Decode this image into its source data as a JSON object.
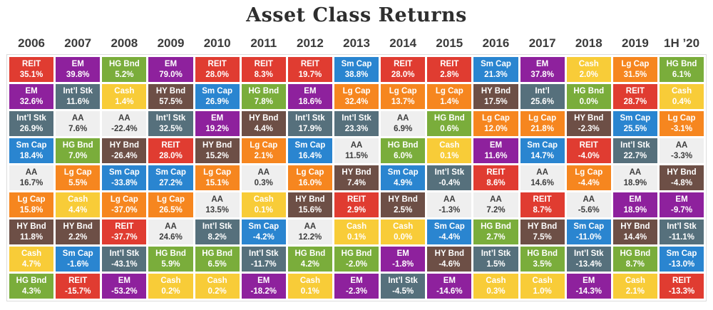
{
  "title": "Asset Class Returns",
  "chart_data": {
    "type": "table",
    "description": "Periodic table of asset class returns, ranked best to worst within each year",
    "asset_colors": {
      "reit": {
        "bg": "#e03c31",
        "fg": "#ffffff"
      },
      "em": {
        "bg": "#8e219d",
        "fg": "#ffffff"
      },
      "hg_bnd": {
        "bg": "#7aad3b",
        "fg": "#ffffff"
      },
      "cash": {
        "bg": "#f8cc38",
        "fg": "#ffffff"
      },
      "hy_bnd": {
        "bg": "#6d4f46",
        "fg": "#ffffff"
      },
      "intl_stk": {
        "bg": "#56707c",
        "fg": "#ffffff"
      },
      "aa": {
        "bg": "#efefef",
        "fg": "#3d3d3d"
      },
      "sm_cap": {
        "bg": "#2a85d0",
        "fg": "#ffffff"
      },
      "lg_cap": {
        "bg": "#f6861f",
        "fg": "#ffffff"
      }
    },
    "columns": [
      {
        "year": "2006",
        "cells": [
          {
            "asset": "reit",
            "label": "REIT",
            "value": "35.1%"
          },
          {
            "asset": "em",
            "label": "EM",
            "value": "32.6%"
          },
          {
            "asset": "intl_stk",
            "label": "Int’l Stk",
            "value": "26.9%"
          },
          {
            "asset": "sm_cap",
            "label": "Sm Cap",
            "value": "18.4%"
          },
          {
            "asset": "aa",
            "label": "AA",
            "value": "16.7%"
          },
          {
            "asset": "lg_cap",
            "label": "Lg Cap",
            "value": "15.8%"
          },
          {
            "asset": "hy_bnd",
            "label": "HY Bnd",
            "value": "11.8%"
          },
          {
            "asset": "cash",
            "label": "Cash",
            "value": "4.7%"
          },
          {
            "asset": "hg_bnd",
            "label": "HG Bnd",
            "value": "4.3%"
          }
        ]
      },
      {
        "year": "2007",
        "cells": [
          {
            "asset": "em",
            "label": "EM",
            "value": "39.8%"
          },
          {
            "asset": "intl_stk",
            "label": "Int’l Stk",
            "value": "11.6%"
          },
          {
            "asset": "aa",
            "label": "AA",
            "value": "7.6%"
          },
          {
            "asset": "hg_bnd",
            "label": "HG Bnd",
            "value": "7.0%"
          },
          {
            "asset": "lg_cap",
            "label": "Lg Cap",
            "value": "5.5%"
          },
          {
            "asset": "cash",
            "label": "Cash",
            "value": "4.4%"
          },
          {
            "asset": "hy_bnd",
            "label": "HY Bnd",
            "value": "2.2%"
          },
          {
            "asset": "sm_cap",
            "label": "Sm Cap",
            "value": "-1.6%"
          },
          {
            "asset": "reit",
            "label": "REIT",
            "value": "-15.7%"
          }
        ]
      },
      {
        "year": "2008",
        "cells": [
          {
            "asset": "hg_bnd",
            "label": "HG Bnd",
            "value": "5.2%"
          },
          {
            "asset": "cash",
            "label": "Cash",
            "value": "1.4%"
          },
          {
            "asset": "aa",
            "label": "AA",
            "value": "-22.4%"
          },
          {
            "asset": "hy_bnd",
            "label": "HY Bnd",
            "value": "-26.4%"
          },
          {
            "asset": "sm_cap",
            "label": "Sm Cap",
            "value": "-33.8%"
          },
          {
            "asset": "lg_cap",
            "label": "Lg Cap",
            "value": "-37.0%"
          },
          {
            "asset": "reit",
            "label": "REIT",
            "value": "-37.7%"
          },
          {
            "asset": "intl_stk",
            "label": "Int’l Stk",
            "value": "-43.1%"
          },
          {
            "asset": "em",
            "label": "EM",
            "value": "-53.2%"
          }
        ]
      },
      {
        "year": "2009",
        "cells": [
          {
            "asset": "em",
            "label": "EM",
            "value": "79.0%"
          },
          {
            "asset": "hy_bnd",
            "label": "HY Bnd",
            "value": "57.5%"
          },
          {
            "asset": "intl_stk",
            "label": "Int’l Stk",
            "value": "32.5%"
          },
          {
            "asset": "reit",
            "label": "REIT",
            "value": "28.0%"
          },
          {
            "asset": "sm_cap",
            "label": "Sm Cap",
            "value": "27.2%"
          },
          {
            "asset": "lg_cap",
            "label": "Lg Cap",
            "value": "26.5%"
          },
          {
            "asset": "aa",
            "label": "AA",
            "value": "24.6%"
          },
          {
            "asset": "hg_bnd",
            "label": "HG Bnd",
            "value": "5.9%"
          },
          {
            "asset": "cash",
            "label": "Cash",
            "value": "0.2%"
          }
        ]
      },
      {
        "year": "2010",
        "cells": [
          {
            "asset": "reit",
            "label": "REIT",
            "value": "28.0%"
          },
          {
            "asset": "sm_cap",
            "label": "Sm Cap",
            "value": "26.9%"
          },
          {
            "asset": "em",
            "label": "EM",
            "value": "19.2%"
          },
          {
            "asset": "hy_bnd",
            "label": "HY Bnd",
            "value": "15.2%"
          },
          {
            "asset": "lg_cap",
            "label": "Lg Cap",
            "value": "15.1%"
          },
          {
            "asset": "aa",
            "label": "AA",
            "value": "13.5%"
          },
          {
            "asset": "intl_stk",
            "label": "Int’l Stk",
            "value": "8.2%"
          },
          {
            "asset": "hg_bnd",
            "label": "HG Bnd",
            "value": "6.5%"
          },
          {
            "asset": "cash",
            "label": "Cash",
            "value": "0.2%"
          }
        ]
      },
      {
        "year": "2011",
        "cells": [
          {
            "asset": "reit",
            "label": "REIT",
            "value": "8.3%"
          },
          {
            "asset": "hg_bnd",
            "label": "HG Bnd",
            "value": "7.8%"
          },
          {
            "asset": "hy_bnd",
            "label": "HY Bnd",
            "value": "4.4%"
          },
          {
            "asset": "lg_cap",
            "label": "Lg Cap",
            "value": "2.1%"
          },
          {
            "asset": "aa",
            "label": "AA",
            "value": "0.3%"
          },
          {
            "asset": "cash",
            "label": "Cash",
            "value": "0.1%"
          },
          {
            "asset": "sm_cap",
            "label": "Sm Cap",
            "value": "-4.2%"
          },
          {
            "asset": "intl_stk",
            "label": "Int’l Stk",
            "value": "-11.7%"
          },
          {
            "asset": "em",
            "label": "EM",
            "value": "-18.2%"
          }
        ]
      },
      {
        "year": "2012",
        "cells": [
          {
            "asset": "reit",
            "label": "REIT",
            "value": "19.7%"
          },
          {
            "asset": "em",
            "label": "EM",
            "value": "18.6%"
          },
          {
            "asset": "intl_stk",
            "label": "Int’l Stk",
            "value": "17.9%"
          },
          {
            "asset": "sm_cap",
            "label": "Sm Cap",
            "value": "16.4%"
          },
          {
            "asset": "lg_cap",
            "label": "Lg Cap",
            "value": "16.0%"
          },
          {
            "asset": "hy_bnd",
            "label": "HY Bnd",
            "value": "15.6%"
          },
          {
            "asset": "aa",
            "label": "AA",
            "value": "12.2%"
          },
          {
            "asset": "hg_bnd",
            "label": "HG Bnd",
            "value": "4.2%"
          },
          {
            "asset": "cash",
            "label": "Cash",
            "value": "0.1%"
          }
        ]
      },
      {
        "year": "2013",
        "cells": [
          {
            "asset": "sm_cap",
            "label": "Sm Cap",
            "value": "38.8%"
          },
          {
            "asset": "lg_cap",
            "label": "Lg Cap",
            "value": "32.4%"
          },
          {
            "asset": "intl_stk",
            "label": "Int’l Stk",
            "value": "23.3%"
          },
          {
            "asset": "aa",
            "label": "AA",
            "value": "11.5%"
          },
          {
            "asset": "hy_bnd",
            "label": "HY Bnd",
            "value": "7.4%"
          },
          {
            "asset": "reit",
            "label": "REIT",
            "value": "2.9%"
          },
          {
            "asset": "cash",
            "label": "Cash",
            "value": "0.1%"
          },
          {
            "asset": "hg_bnd",
            "label": "HG Bnd",
            "value": "-2.0%"
          },
          {
            "asset": "em",
            "label": "EM",
            "value": "-2.3%"
          }
        ]
      },
      {
        "year": "2014",
        "cells": [
          {
            "asset": "reit",
            "label": "REIT",
            "value": "28.0%"
          },
          {
            "asset": "lg_cap",
            "label": "Lg Cap",
            "value": "13.7%"
          },
          {
            "asset": "aa",
            "label": "AA",
            "value": "6.9%"
          },
          {
            "asset": "hg_bnd",
            "label": "HG Bnd",
            "value": "6.0%"
          },
          {
            "asset": "sm_cap",
            "label": "Sm Cap",
            "value": "4.9%"
          },
          {
            "asset": "hy_bnd",
            "label": "HY Bnd",
            "value": "2.5%"
          },
          {
            "asset": "cash",
            "label": "Cash",
            "value": "0.0%"
          },
          {
            "asset": "em",
            "label": "EM",
            "value": "-1.8%"
          },
          {
            "asset": "intl_stk",
            "label": "Int’l Stk",
            "value": "-4.5%"
          }
        ]
      },
      {
        "year": "2015",
        "cells": [
          {
            "asset": "reit",
            "label": "REIT",
            "value": "2.8%"
          },
          {
            "asset": "lg_cap",
            "label": "Lg Cap",
            "value": "1.4%"
          },
          {
            "asset": "hg_bnd",
            "label": "HG Bnd",
            "value": "0.6%"
          },
          {
            "asset": "cash",
            "label": "Cash",
            "value": "0.1%"
          },
          {
            "asset": "intl_stk",
            "label": "Int’l Stk",
            "value": "-0.4%"
          },
          {
            "asset": "aa",
            "label": "AA",
            "value": "-1.3%"
          },
          {
            "asset": "sm_cap",
            "label": "Sm Cap",
            "value": "-4.4%"
          },
          {
            "asset": "hy_bnd",
            "label": "HY Bnd",
            "value": "-4.6%"
          },
          {
            "asset": "em",
            "label": "EM",
            "value": "-14.6%"
          }
        ]
      },
      {
        "year": "2016",
        "cells": [
          {
            "asset": "sm_cap",
            "label": "Sm Cap",
            "value": "21.3%"
          },
          {
            "asset": "hy_bnd",
            "label": "HY Bnd",
            "value": "17.5%"
          },
          {
            "asset": "lg_cap",
            "label": "Lg Cap",
            "value": "12.0%"
          },
          {
            "asset": "em",
            "label": "EM",
            "value": "11.6%"
          },
          {
            "asset": "reit",
            "label": "REIT",
            "value": "8.6%"
          },
          {
            "asset": "aa",
            "label": "AA",
            "value": "7.2%"
          },
          {
            "asset": "hg_bnd",
            "label": "HG Bnd",
            "value": "2.7%"
          },
          {
            "asset": "intl_stk",
            "label": "Int’l Stk",
            "value": "1.5%"
          },
          {
            "asset": "cash",
            "label": "Cash",
            "value": "0.3%"
          }
        ]
      },
      {
        "year": "2017",
        "cells": [
          {
            "asset": "em",
            "label": "EM",
            "value": "37.8%"
          },
          {
            "asset": "intl_stk",
            "label": "Int’l",
            "value": "25.6%"
          },
          {
            "asset": "lg_cap",
            "label": "Lg Cap",
            "value": "21.8%"
          },
          {
            "asset": "sm_cap",
            "label": "Sm Cap",
            "value": "14.7%"
          },
          {
            "asset": "aa",
            "label": "AA",
            "value": "14.6%"
          },
          {
            "asset": "reit",
            "label": "REIT",
            "value": "8.7%"
          },
          {
            "asset": "hy_bnd",
            "label": "HY Bnd",
            "value": "7.5%"
          },
          {
            "asset": "hg_bnd",
            "label": "HG Bnd",
            "value": "3.5%"
          },
          {
            "asset": "cash",
            "label": "Cash",
            "value": "1.0%"
          }
        ]
      },
      {
        "year": "2018",
        "cells": [
          {
            "asset": "cash",
            "label": "Cash",
            "value": "2.0%"
          },
          {
            "asset": "hg_bnd",
            "label": "HG Bnd",
            "value": "0.0%"
          },
          {
            "asset": "hy_bnd",
            "label": "HY Bnd",
            "value": "-2.3%"
          },
          {
            "asset": "reit",
            "label": "REIT",
            "value": "-4.0%"
          },
          {
            "asset": "lg_cap",
            "label": "Lg Cap",
            "value": "-4.4%"
          },
          {
            "asset": "aa",
            "label": "AA",
            "value": "-5.6%"
          },
          {
            "asset": "sm_cap",
            "label": "Sm Cap",
            "value": "-11.0%"
          },
          {
            "asset": "intl_stk",
            "label": "Int’l Stk",
            "value": "-13.4%"
          },
          {
            "asset": "em",
            "label": "EM",
            "value": "-14.3%"
          }
        ]
      },
      {
        "year": "2019",
        "cells": [
          {
            "asset": "lg_cap",
            "label": "Lg Cap",
            "value": "31.5%"
          },
          {
            "asset": "reit",
            "label": "REIT",
            "value": "28.7%"
          },
          {
            "asset": "sm_cap",
            "label": "Sm Cap",
            "value": "25.5%"
          },
          {
            "asset": "intl_stk",
            "label": "Int’l Stk",
            "value": "22.7%"
          },
          {
            "asset": "aa",
            "label": "AA",
            "value": "18.9%"
          },
          {
            "asset": "em",
            "label": "EM",
            "value": "18.9%"
          },
          {
            "asset": "hy_bnd",
            "label": "HY Bnd",
            "value": "14.4%"
          },
          {
            "asset": "hg_bnd",
            "label": "HG Bnd",
            "value": "8.7%"
          },
          {
            "asset": "cash",
            "label": "Cash",
            "value": "2.1%"
          }
        ]
      },
      {
        "year": "1H ’20",
        "cells": [
          {
            "asset": "hg_bnd",
            "label": "HG Bnd",
            "value": "6.1%"
          },
          {
            "asset": "cash",
            "label": "Cash",
            "value": "0.4%"
          },
          {
            "asset": "lg_cap",
            "label": "Lg Cap",
            "value": "-3.1%"
          },
          {
            "asset": "aa",
            "label": "AA",
            "value": "-3.3%"
          },
          {
            "asset": "hy_bnd",
            "label": "HY Bnd",
            "value": "-4.8%"
          },
          {
            "asset": "em",
            "label": "EM",
            "value": "-9.7%"
          },
          {
            "asset": "intl_stk",
            "label": "Int’l Stk",
            "value": "-11.1%"
          },
          {
            "asset": "sm_cap",
            "label": "Sm Cap",
            "value": "-13.0%"
          },
          {
            "asset": "reit",
            "label": "REIT",
            "value": "-13.3%"
          }
        ]
      }
    ]
  }
}
